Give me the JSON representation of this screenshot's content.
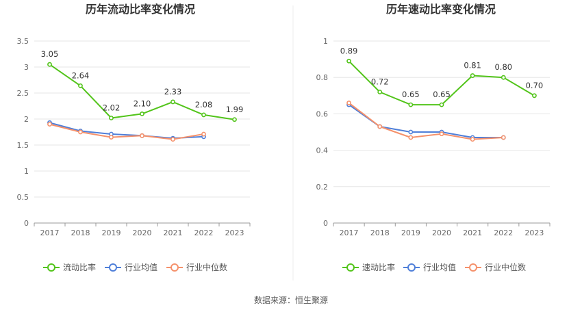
{
  "source_label": "数据来源：恒生聚源",
  "colors": {
    "main": "#52c41a",
    "avg": "#4f7fd9",
    "median": "#f5916b"
  },
  "chart_data": [
    {
      "type": "line",
      "title": "历年流动比率变化情况",
      "categories": [
        "2017",
        "2018",
        "2019",
        "2020",
        "2021",
        "2022",
        "2023"
      ],
      "ylim": [
        0,
        3.5
      ],
      "yticks": [
        0,
        0.5,
        1,
        1.5,
        2,
        2.5,
        3,
        3.5
      ],
      "ytick_labels": [
        "0",
        "0.5",
        "1",
        "1.5",
        "2",
        "2.5",
        "3",
        "3.5"
      ],
      "grid": true,
      "legend_position": "bottom",
      "series": [
        {
          "name": "流动比率",
          "values": [
            3.05,
            2.64,
            2.02,
            2.1,
            2.33,
            2.08,
            1.99
          ],
          "labels": [
            "3.05",
            "2.64",
            "2.02",
            "2.10",
            "2.33",
            "2.08",
            "1.99"
          ]
        },
        {
          "name": "行业均值",
          "values": [
            1.93,
            1.77,
            1.71,
            1.68,
            1.63,
            1.66,
            null
          ]
        },
        {
          "name": "行业中位数",
          "values": [
            1.9,
            1.75,
            1.65,
            1.68,
            1.61,
            1.71,
            null
          ]
        }
      ]
    },
    {
      "type": "line",
      "title": "历年速动比率变化情况",
      "categories": [
        "2017",
        "2018",
        "2019",
        "2020",
        "2021",
        "2022",
        "2023"
      ],
      "ylim": [
        0,
        1
      ],
      "yticks": [
        0,
        0.2,
        0.4,
        0.6,
        0.8,
        1
      ],
      "ytick_labels": [
        "0",
        "0.2",
        "0.4",
        "0.6",
        "0.8",
        "1"
      ],
      "grid": true,
      "legend_position": "bottom",
      "series": [
        {
          "name": "速动比率",
          "values": [
            0.89,
            0.72,
            0.65,
            0.65,
            0.81,
            0.8,
            0.7
          ],
          "labels": [
            "0.89",
            "0.72",
            "0.65",
            "0.65",
            "0.81",
            "0.80",
            "0.70"
          ]
        },
        {
          "name": "行业均值",
          "values": [
            0.65,
            0.53,
            0.5,
            0.5,
            0.47,
            0.47,
            null
          ]
        },
        {
          "name": "行业中位数",
          "values": [
            0.66,
            0.53,
            0.47,
            0.49,
            0.46,
            0.47,
            null
          ]
        }
      ]
    }
  ]
}
